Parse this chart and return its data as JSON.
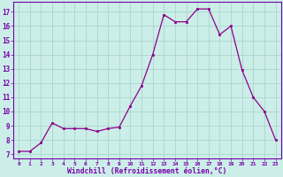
{
  "x": [
    0,
    1,
    2,
    3,
    4,
    5,
    6,
    7,
    8,
    9,
    10,
    11,
    12,
    13,
    14,
    15,
    16,
    17,
    18,
    19,
    20,
    21,
    22,
    23
  ],
  "y": [
    7.2,
    7.2,
    7.8,
    9.2,
    8.8,
    8.8,
    8.8,
    8.6,
    8.8,
    8.9,
    10.4,
    11.8,
    14.0,
    16.8,
    16.3,
    16.3,
    17.2,
    17.2,
    15.4,
    16.0,
    12.9,
    11.0,
    10.0,
    8.0
  ],
  "line_color": "#8B008B",
  "marker_color": "#8B008B",
  "bg_color": "#cceee8",
  "grid_color": "#aad4ce",
  "xlabel": "Windchill (Refroidissement éolien,°C)",
  "ytick_vals": [
    7,
    8,
    9,
    10,
    11,
    12,
    13,
    14,
    15,
    16,
    17
  ],
  "xlim": [
    -0.5,
    23.5
  ],
  "ylim": [
    6.7,
    17.7
  ],
  "xtick_labels": [
    "0",
    "1",
    "2",
    "3",
    "4",
    "5",
    "6",
    "7",
    "8",
    "9",
    "10",
    "11",
    "12",
    "13",
    "14",
    "15",
    "16",
    "17",
    "18",
    "19",
    "20",
    "21",
    "22",
    "23"
  ]
}
